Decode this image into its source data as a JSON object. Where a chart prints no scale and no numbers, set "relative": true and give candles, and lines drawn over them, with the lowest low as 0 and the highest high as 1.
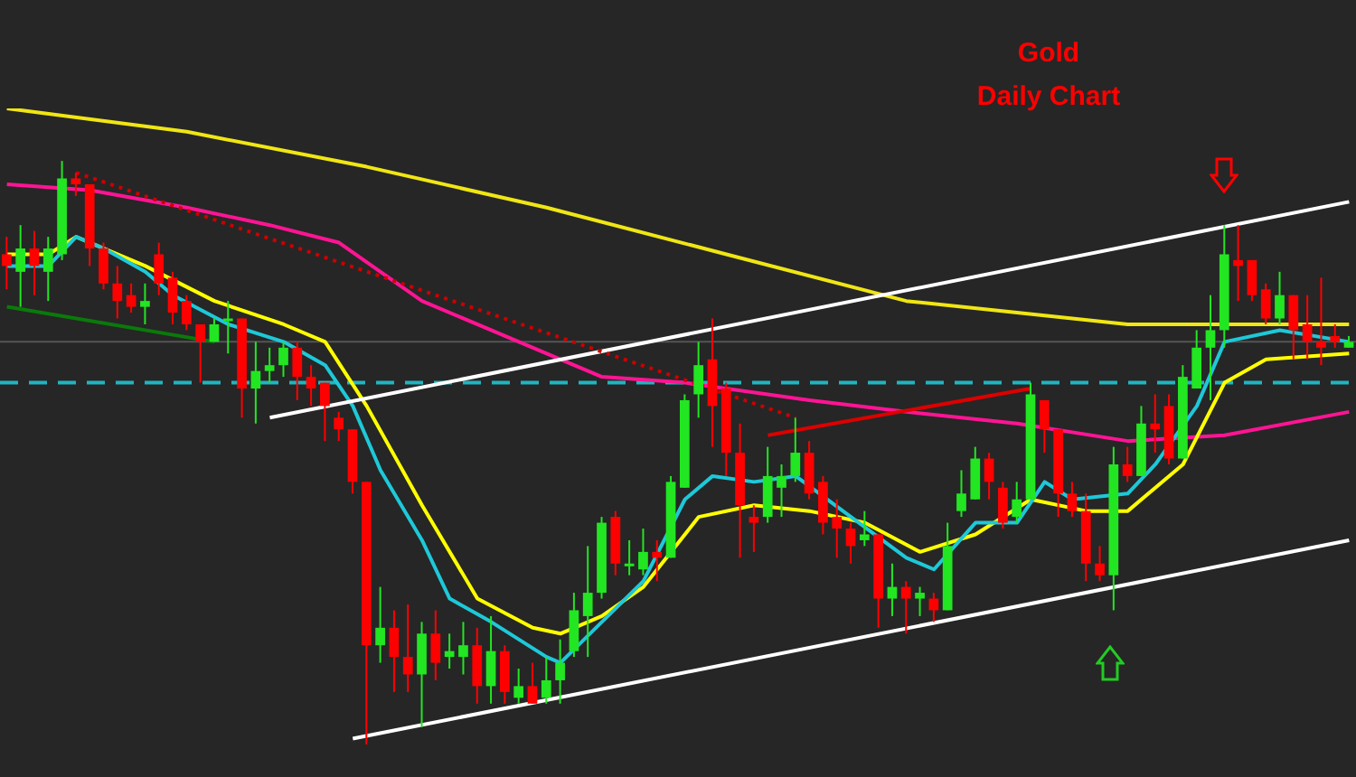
{
  "chart_data": {
    "type": "candlestick",
    "title": "Gold",
    "subtitle": "Daily Chart",
    "relative": true,
    "categories": [
      null,
      null,
      null,
      null,
      null,
      null,
      null,
      null,
      null,
      null,
      null,
      null,
      null,
      null,
      null,
      null,
      null,
      null,
      null,
      null,
      null,
      null,
      null,
      null,
      null,
      null,
      null,
      null,
      null,
      null,
      null,
      null,
      null,
      null,
      null,
      null,
      null,
      null,
      null,
      null,
      null,
      null,
      null,
      null,
      null,
      null,
      null,
      null,
      null,
      null,
      null,
      null,
      null,
      null,
      null,
      null,
      null,
      null,
      null,
      null,
      null,
      null,
      null,
      null,
      null,
      null,
      null,
      null,
      null,
      null,
      null,
      null,
      null,
      null,
      null,
      null,
      null,
      null,
      null,
      null,
      null,
      null,
      null,
      null,
      null,
      null,
      null,
      null,
      null,
      null,
      null,
      null,
      null,
      null,
      null,
      null,
      null,
      null
    ],
    "ohlc": [
      [
        0.84,
        0.87,
        0.78,
        0.82
      ],
      [
        0.81,
        0.89,
        0.75,
        0.85
      ],
      [
        0.85,
        0.88,
        0.77,
        0.82
      ],
      [
        0.81,
        0.87,
        0.76,
        0.85
      ],
      [
        0.84,
        1,
        0.83,
        0.97
      ],
      [
        0.97,
        0.98,
        0.94,
        0.96
      ],
      [
        0.96,
        0.96,
        0.82,
        0.85
      ],
      [
        0.85,
        0.86,
        0.78,
        0.79
      ],
      [
        0.79,
        0.82,
        0.73,
        0.76
      ],
      [
        0.77,
        0.79,
        0.74,
        0.75
      ],
      [
        0.75,
        0.79,
        0.72,
        0.76
      ],
      [
        0.84,
        0.86,
        0.77,
        0.79
      ],
      [
        0.8,
        0.81,
        0.72,
        0.74
      ],
      [
        0.76,
        0.77,
        0.71,
        0.72
      ],
      [
        0.72,
        0.72,
        0.62,
        0.69
      ],
      [
        0.69,
        0.73,
        0.69,
        0.72
      ],
      [
        0.73,
        0.76,
        0.67,
        0.73
      ],
      [
        0.73,
        0.73,
        0.56,
        0.61
      ],
      [
        0.61,
        0.69,
        0.55,
        0.64
      ],
      [
        0.64,
        0.68,
        0.62,
        0.65
      ],
      [
        0.65,
        0.69,
        0.63,
        0.68
      ],
      [
        0.68,
        0.69,
        0.59,
        0.63
      ],
      [
        0.63,
        0.65,
        0.58,
        0.61
      ],
      [
        0.62,
        0.62,
        0.52,
        0.58
      ],
      [
        0.56,
        0.57,
        0.52,
        0.54
      ],
      [
        0.54,
        0.54,
        0.43,
        0.45
      ],
      [
        0.45,
        0.45,
        0,
        0.17
      ],
      [
        0.17,
        0.27,
        0.14,
        0.2
      ],
      [
        0.2,
        0.23,
        0.09,
        0.15
      ],
      [
        0.15,
        0.24,
        0.09,
        0.12
      ],
      [
        0.12,
        0.21,
        0.03,
        0.19
      ],
      [
        0.19,
        0.23,
        0.11,
        0.14
      ],
      [
        0.15,
        0.19,
        0.13,
        0.16
      ],
      [
        0.15,
        0.21,
        0.12,
        0.17
      ],
      [
        0.17,
        0.2,
        0.07,
        0.1
      ],
      [
        0.1,
        0.22,
        0.07,
        0.16
      ],
      [
        0.16,
        0.17,
        0.07,
        0.09
      ],
      [
        0.08,
        0.13,
        0.07,
        0.1
      ],
      [
        0.1,
        0.14,
        0.07,
        0.07
      ],
      [
        0.08,
        0.15,
        0.07,
        0.11
      ],
      [
        0.11,
        0.18,
        0.07,
        0.14
      ],
      [
        0.16,
        0.26,
        0.15,
        0.23
      ],
      [
        0.22,
        0.34,
        0.15,
        0.26
      ],
      [
        0.26,
        0.39,
        0.25,
        0.38
      ],
      [
        0.39,
        0.4,
        0.29,
        0.31
      ],
      [
        0.31,
        0.35,
        0.29,
        0.31
      ],
      [
        0.3,
        0.37,
        0.29,
        0.33
      ],
      [
        0.33,
        0.35,
        0.28,
        0.32
      ],
      [
        0.32,
        0.46,
        0.32,
        0.45
      ],
      [
        0.44,
        0.6,
        0.44,
        0.59
      ],
      [
        0.6,
        0.69,
        0.56,
        0.65
      ],
      [
        0.66,
        0.73,
        0.51,
        0.58
      ],
      [
        0.61,
        0.62,
        0.46,
        0.5
      ],
      [
        0.5,
        0.55,
        0.32,
        0.41
      ],
      [
        0.39,
        0.41,
        0.33,
        0.38
      ],
      [
        0.39,
        0.51,
        0.38,
        0.46
      ],
      [
        0.44,
        0.48,
        0.39,
        0.46
      ],
      [
        0.46,
        0.56,
        0.45,
        0.5
      ],
      [
        0.5,
        0.52,
        0.42,
        0.43
      ],
      [
        0.45,
        0.46,
        0.36,
        0.38
      ],
      [
        0.39,
        0.42,
        0.32,
        0.37
      ],
      [
        0.37,
        0.38,
        0.31,
        0.34
      ],
      [
        0.35,
        0.4,
        0.34,
        0.36
      ],
      [
        0.36,
        0.36,
        0.2,
        0.25
      ],
      [
        0.25,
        0.31,
        0.22,
        0.27
      ],
      [
        0.27,
        0.28,
        0.19,
        0.25
      ],
      [
        0.25,
        0.27,
        0.22,
        0.26
      ],
      [
        0.25,
        0.26,
        0.21,
        0.23
      ],
      [
        0.23,
        0.38,
        0.23,
        0.34
      ],
      [
        0.4,
        0.47,
        0.39,
        0.43
      ],
      [
        0.42,
        0.51,
        0.42,
        0.49
      ],
      [
        0.49,
        0.5,
        0.42,
        0.45
      ],
      [
        0.44,
        0.45,
        0.37,
        0.38
      ],
      [
        0.39,
        0.45,
        0.38,
        0.42
      ],
      [
        0.42,
        0.62,
        0.42,
        0.6
      ],
      [
        0.59,
        0.59,
        0.5,
        0.54
      ],
      [
        0.54,
        0.54,
        0.39,
        0.43
      ],
      [
        0.43,
        0.45,
        0.39,
        0.4
      ],
      [
        0.4,
        0.43,
        0.28,
        0.31
      ],
      [
        0.31,
        0.34,
        0.28,
        0.29
      ],
      [
        0.29,
        0.51,
        0.23,
        0.48
      ],
      [
        0.48,
        0.51,
        0.45,
        0.46
      ],
      [
        0.46,
        0.58,
        0.46,
        0.55
      ],
      [
        0.55,
        0.6,
        0.5,
        0.54
      ],
      [
        0.58,
        0.6,
        0.48,
        0.49
      ],
      [
        0.49,
        0.65,
        0.49,
        0.63
      ],
      [
        0.61,
        0.71,
        0.61,
        0.68
      ],
      [
        0.68,
        0.77,
        0.59,
        0.71
      ],
      [
        0.71,
        0.89,
        0.68,
        0.84
      ],
      [
        0.83,
        0.89,
        0.76,
        0.82
      ],
      [
        0.83,
        0.83,
        0.76,
        0.77
      ],
      [
        0.78,
        0.79,
        0.72,
        0.73
      ],
      [
        0.73,
        0.81,
        0.72,
        0.77
      ],
      [
        0.77,
        0.77,
        0.66,
        0.71
      ],
      [
        0.72,
        0.77,
        0.66,
        0.69
      ],
      [
        0.69,
        0.8,
        0.65,
        0.68
      ],
      [
        0.7,
        0.72,
        0.68,
        0.69
      ],
      [
        0.68,
        0.7,
        0.68,
        0.69
      ]
    ],
    "series": [
      {
        "type": "line",
        "color": "#f0e614",
        "values": [
          1.09,
          null,
          null,
          null,
          null,
          null,
          null,
          null,
          null,
          null,
          null,
          null,
          null,
          1.05,
          null,
          null,
          null,
          null,
          null,
          null,
          null,
          null,
          null,
          null,
          null,
          null,
          0.99,
          null,
          null,
          null,
          null,
          null,
          null,
          null,
          null,
          null,
          null,
          null,
          null,
          0.92,
          null,
          null,
          null,
          null,
          null,
          null,
          null,
          null,
          null,
          null,
          null,
          null,
          0.84,
          null,
          null,
          null,
          null,
          null,
          null,
          null,
          null,
          null,
          null,
          null,
          null,
          0.76,
          null,
          null,
          null,
          null,
          null,
          null,
          null,
          0.74,
          null,
          null,
          null,
          null,
          null,
          null,
          null,
          0.72,
          null,
          null,
          null,
          null,
          0.72,
          null,
          null,
          null,
          null,
          null,
          null,
          null,
          null,
          null,
          null,
          0.72
        ]
      },
      {
        "type": "line",
        "color": "#ff1493",
        "values": [
          0.96,
          null,
          null,
          null,
          null,
          null,
          0.95,
          null,
          null,
          null,
          null,
          null,
          null,
          0.92,
          null,
          null,
          null,
          null,
          null,
          0.89,
          null,
          null,
          null,
          null,
          0.86,
          null,
          null,
          null,
          null,
          null,
          0.76,
          null,
          null,
          null,
          null,
          null,
          0.7,
          null,
          null,
          null,
          null,
          null,
          null,
          0.63,
          null,
          null,
          null,
          null,
          null,
          0.62,
          null,
          null,
          null,
          null,
          null,
          null,
          null,
          null,
          0.59,
          null,
          null,
          null,
          null,
          null,
          null,
          0.57,
          null,
          null,
          null,
          null,
          null,
          null,
          null,
          0.55,
          null,
          null,
          null,
          null,
          null,
          null,
          null,
          0.52,
          null,
          null,
          null,
          null,
          null,
          null,
          0.53,
          null,
          null,
          null,
          null,
          null,
          null,
          null,
          null,
          0.57
        ]
      },
      {
        "type": "line",
        "color": "#ffff00",
        "values": [
          0.84,
          null,
          null,
          0.84,
          null,
          0.87,
          null,
          null,
          null,
          null,
          0.82,
          null,
          null,
          null,
          null,
          0.76,
          null,
          null,
          null,
          null,
          0.72,
          null,
          null,
          0.69,
          null,
          null,
          0.58,
          null,
          null,
          null,
          0.41,
          null,
          null,
          null,
          0.25,
          null,
          null,
          null,
          0.2,
          null,
          0.19,
          null,
          null,
          0.22,
          null,
          null,
          0.27,
          null,
          null,
          null,
          0.39,
          null,
          null,
          null,
          0.41,
          null,
          null,
          null,
          0.4,
          null,
          null,
          null,
          0.38,
          null,
          null,
          null,
          0.33,
          null,
          null,
          null,
          0.36,
          null,
          null,
          null,
          0.42,
          null,
          null,
          null,
          0.4,
          null,
          null,
          0.4,
          null,
          null,
          null,
          0.48,
          null,
          null,
          0.62,
          null,
          null,
          0.66,
          null,
          null,
          null,
          null,
          null,
          0.67
        ]
      },
      {
        "type": "line",
        "color": "#1ec8d8",
        "values": [
          0.82,
          null,
          null,
          0.82,
          null,
          0.87,
          null,
          0.85,
          null,
          null,
          0.81,
          null,
          0.77,
          null,
          null,
          null,
          0.72,
          null,
          null,
          null,
          0.69,
          null,
          null,
          0.65,
          null,
          0.58,
          null,
          0.47,
          null,
          null,
          0.35,
          null,
          0.25,
          null,
          null,
          0.21,
          null,
          null,
          null,
          0.15,
          0.14,
          null,
          null,
          0.21,
          null,
          null,
          0.28,
          null,
          null,
          0.42,
          null,
          0.46,
          null,
          null,
          0.45,
          null,
          null,
          0.46,
          null,
          null,
          null,
          0.39,
          null,
          null,
          null,
          0.32,
          null,
          0.3,
          null,
          null,
          0.38,
          null,
          null,
          0.38,
          null,
          0.45,
          null,
          0.42,
          null,
          null,
          null,
          0.43,
          null,
          0.48,
          null,
          null,
          0.58,
          null,
          0.69,
          null,
          null,
          null,
          0.71,
          null,
          null,
          null,
          null,
          0.69
        ]
      },
      {
        "type": "line",
        "color": "#ffffff",
        "values": [
          null,
          null,
          null,
          null,
          null,
          null,
          null,
          null,
          null,
          null,
          null,
          null,
          null,
          null,
          null,
          null,
          null,
          null,
          null,
          0.56,
          null,
          null,
          null,
          null,
          null,
          null,
          null,
          null,
          null,
          null,
          null,
          null,
          null,
          null,
          null,
          null,
          null,
          null,
          null,
          null,
          null,
          null,
          null,
          null,
          null,
          null,
          null,
          null,
          null,
          null,
          null,
          null,
          null,
          null,
          null,
          null,
          null,
          null,
          null,
          null,
          null,
          null,
          null,
          null,
          null,
          null,
          null,
          null,
          null,
          null,
          null,
          null,
          null,
          null,
          null,
          null,
          null,
          null,
          null,
          null,
          null,
          null,
          null,
          null,
          null,
          null,
          null,
          null,
          null,
          null,
          null,
          null,
          null,
          null,
          null,
          null,
          null,
          0.93
        ]
      },
      {
        "type": "line",
        "color": "#ffffff",
        "values": [
          null,
          null,
          null,
          null,
          null,
          null,
          null,
          null,
          null,
          null,
          null,
          null,
          null,
          null,
          null,
          null,
          null,
          null,
          null,
          null,
          null,
          null,
          null,
          null,
          null,
          0.01,
          null,
          null,
          null,
          null,
          null,
          null,
          null,
          null,
          null,
          null,
          null,
          null,
          null,
          null,
          null,
          null,
          null,
          null,
          null,
          null,
          null,
          null,
          null,
          null,
          null,
          null,
          null,
          null,
          null,
          null,
          null,
          null,
          null,
          null,
          null,
          null,
          null,
          null,
          null,
          null,
          null,
          null,
          null,
          null,
          null,
          null,
          null,
          null,
          null,
          null,
          null,
          null,
          null,
          null,
          null,
          null,
          null,
          null,
          null,
          null,
          null,
          null,
          null,
          null,
          null,
          null,
          null,
          null,
          null,
          null,
          null,
          0.35
        ]
      },
      {
        "type": "line",
        "color": "#cc0000",
        "line_style": "dotted",
        "values": [
          null,
          null,
          null,
          null,
          null,
          0.98,
          null,
          null,
          null,
          null,
          null,
          null,
          null,
          null,
          null,
          null,
          null,
          null,
          null,
          null,
          null,
          null,
          null,
          null,
          null,
          null,
          null,
          null,
          null,
          null,
          null,
          null,
          null,
          null,
          null,
          null,
          null,
          null,
          null,
          null,
          null,
          null,
          null,
          null,
          null,
          null,
          null,
          null,
          null,
          null,
          null,
          null,
          null,
          null,
          null,
          null,
          null,
          0.56,
          null,
          null,
          null,
          null,
          null,
          null,
          null,
          null,
          null,
          null,
          null,
          null,
          null,
          null,
          null,
          null,
          null,
          null,
          null,
          null,
          null,
          null,
          null,
          null,
          null,
          null,
          null,
          null,
          null,
          null,
          null,
          null,
          null,
          null,
          null,
          null,
          null,
          null,
          null,
          null
        ]
      },
      {
        "type": "line",
        "color": "#dd0000",
        "values": [
          null,
          null,
          null,
          null,
          null,
          null,
          null,
          null,
          null,
          null,
          null,
          null,
          null,
          null,
          null,
          null,
          null,
          null,
          null,
          null,
          null,
          null,
          null,
          null,
          null,
          null,
          null,
          null,
          null,
          null,
          null,
          null,
          null,
          null,
          null,
          null,
          null,
          null,
          null,
          null,
          null,
          null,
          null,
          null,
          null,
          null,
          null,
          null,
          null,
          null,
          null,
          null,
          null,
          null,
          null,
          0.53,
          null,
          null,
          null,
          null,
          null,
          null,
          null,
          null,
          null,
          null,
          null,
          null,
          null,
          null,
          null,
          null,
          null,
          null,
          0.61,
          null,
          null,
          null,
          null,
          null,
          null,
          null,
          null,
          null,
          null,
          null,
          null,
          null,
          null,
          null,
          null,
          null,
          null,
          null,
          null,
          null,
          null,
          null
        ]
      },
      {
        "type": "line",
        "color": "#0a7a0a",
        "values": [
          0.75,
          null,
          null,
          null,
          null,
          null,
          null,
          null,
          null,
          null,
          null,
          null,
          null,
          null,
          null,
          0.69,
          null,
          null,
          null,
          null,
          null,
          null,
          null,
          null,
          null,
          null,
          null,
          null,
          null,
          null,
          null,
          null,
          null,
          null,
          null,
          null,
          null,
          null,
          null,
          null,
          null,
          null,
          null,
          null,
          null,
          null,
          null,
          null,
          null,
          null,
          null,
          null,
          null,
          null,
          null,
          null,
          null,
          null,
          null,
          null,
          null,
          null,
          null,
          null,
          null,
          null,
          null,
          null,
          null,
          null,
          null,
          null,
          null,
          null,
          null,
          null,
          null,
          null,
          null,
          null,
          null,
          null,
          null,
          null,
          null,
          null,
          null,
          null,
          null,
          null,
          null,
          null,
          null,
          null,
          null,
          null,
          null,
          null
        ]
      }
    ],
    "ref_lines": [
      {
        "axis": "y",
        "value": 0.62,
        "color": "#1fb5c0",
        "line_style": "dashed"
      },
      {
        "axis": "y",
        "value": 0.69,
        "color": "#555555"
      }
    ]
  }
}
